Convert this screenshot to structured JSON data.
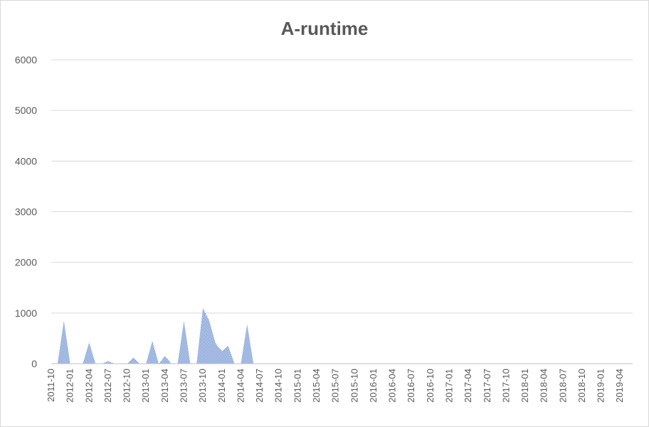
{
  "chart_data": {
    "type": "area",
    "title": "A-runtime",
    "xlabel": "",
    "ylabel": "",
    "ylim": [
      0,
      6000
    ],
    "yticks": [
      0,
      1000,
      2000,
      3000,
      4000,
      5000,
      6000
    ],
    "grid": true,
    "legend": "none",
    "fill_color": "#4472c4",
    "categories": [
      "2011-10",
      "2011-11",
      "2011-12",
      "2012-01",
      "2012-02",
      "2012-03",
      "2012-04",
      "2012-05",
      "2012-06",
      "2012-07",
      "2012-08",
      "2012-09",
      "2012-10",
      "2012-11",
      "2012-12",
      "2013-01",
      "2013-02",
      "2013-03",
      "2013-04",
      "2013-05",
      "2013-06",
      "2013-07",
      "2013-08",
      "2013-09",
      "2013-10",
      "2013-11",
      "2013-12",
      "2014-01",
      "2014-02",
      "2014-03",
      "2014-04",
      "2014-05",
      "2014-06",
      "2014-07",
      "2014-08",
      "2014-09",
      "2014-10",
      "2014-11",
      "2014-12",
      "2015-01",
      "2015-02",
      "2015-03",
      "2015-04",
      "2015-05",
      "2015-06",
      "2015-07",
      "2015-08",
      "2015-09",
      "2015-10",
      "2015-11",
      "2015-12",
      "2016-01",
      "2016-02",
      "2016-03",
      "2016-04",
      "2016-05",
      "2016-06",
      "2016-07",
      "2016-08",
      "2016-09",
      "2016-10",
      "2016-11",
      "2016-12",
      "2017-01",
      "2017-02",
      "2017-03",
      "2017-04",
      "2017-05",
      "2017-06",
      "2017-07",
      "2017-08",
      "2017-09",
      "2017-10",
      "2017-11",
      "2017-12",
      "2018-01",
      "2018-02",
      "2018-03",
      "2018-04",
      "2018-05",
      "2018-06",
      "2018-07",
      "2018-08",
      "2018-09",
      "2018-10",
      "2018-11",
      "2018-12",
      "2019-01",
      "2019-02",
      "2019-03",
      "2019-04",
      "2019-05",
      "2019-06"
    ],
    "values": [
      0,
      0,
      850,
      0,
      0,
      0,
      420,
      0,
      0,
      50,
      0,
      0,
      0,
      120,
      0,
      0,
      450,
      0,
      150,
      0,
      0,
      850,
      0,
      0,
      1100,
      850,
      400,
      250,
      350,
      0,
      0,
      780,
      0,
      0,
      0,
      0,
      0,
      0,
      0,
      0,
      0,
      0,
      0,
      0,
      0,
      0,
      0,
      0,
      0,
      0,
      0,
      0,
      0,
      0,
      0,
      0,
      0,
      0,
      0,
      0,
      0,
      0,
      0,
      0,
      0,
      0,
      0,
      0,
      0,
      0,
      0,
      0,
      0,
      0,
      0,
      0,
      0,
      0,
      0,
      0,
      0,
      0,
      0,
      0,
      0,
      0,
      0,
      0,
      0,
      0,
      0,
      0,
      0
    ],
    "tick_labels": [
      "2011-10",
      "2012-01",
      "2012-04",
      "2012-07",
      "2012-10",
      "2013-01",
      "2013-04",
      "2013-07",
      "2013-10",
      "2014-01",
      "2014-04",
      "2014-07",
      "2014-10",
      "2015-01",
      "2015-04",
      "2015-07",
      "2015-10",
      "2016-01",
      "2016-04",
      "2016-07",
      "2016-10",
      "2017-01",
      "2017-04",
      "2017-07",
      "2017-10",
      "2018-01",
      "2018-04",
      "2018-07",
      "2018-10",
      "2019-01",
      "2019-04"
    ]
  }
}
